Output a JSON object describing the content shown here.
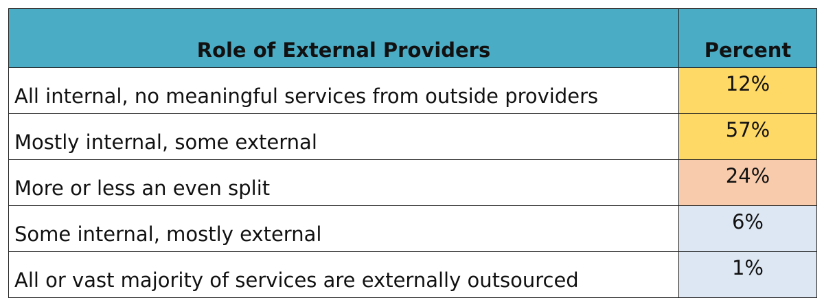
{
  "table": {
    "header": [
      "Role of External Providers",
      "Percent"
    ],
    "rows": [
      [
        "All internal, no meaningful services from outside providers",
        "12%"
      ],
      [
        "Mostly internal, some external",
        "57%"
      ],
      [
        "More or less an even split",
        "24%"
      ],
      [
        "Some internal, mostly external",
        "6%"
      ],
      [
        "All or vast majority of services are externally outsourced",
        "1%"
      ]
    ]
  }
}
